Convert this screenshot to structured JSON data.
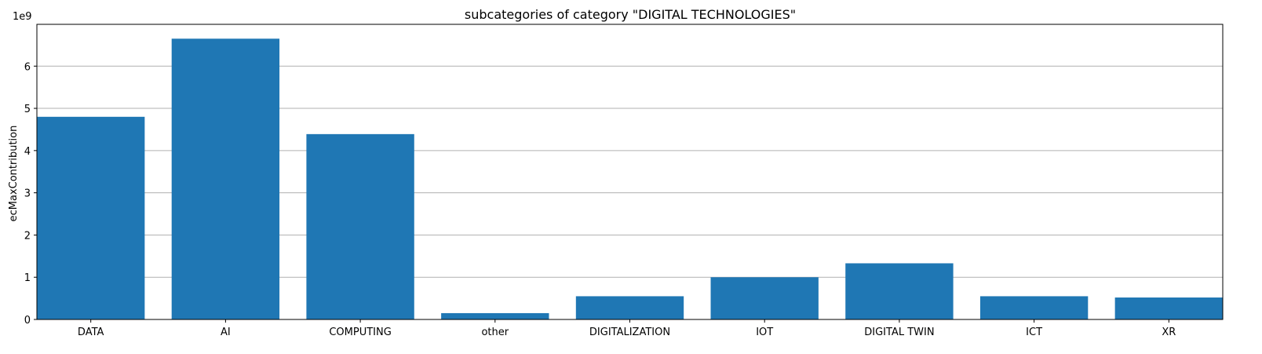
{
  "chart_data": {
    "type": "bar",
    "title": "subcategories of category \"DIGITAL TECHNOLOGIES\"",
    "xlabel": "",
    "ylabel": "ecMaxContribution",
    "scale_note": "1e9",
    "categories": [
      "DATA",
      "AI",
      "COMPUTING",
      "other",
      "DIGITALIZATION",
      "IOT",
      "DIGITAL TWIN",
      "ICT",
      "XR"
    ],
    "values": [
      4.8,
      6.65,
      4.39,
      0.15,
      0.55,
      1.0,
      1.33,
      0.55,
      0.52
    ],
    "ylim": [
      0,
      6.99
    ],
    "yticks": [
      0,
      1,
      2,
      3,
      4,
      5,
      6
    ],
    "grid": "horizontal",
    "bar_color": "#1f77b4",
    "grid_color": "#b0b0b0"
  }
}
